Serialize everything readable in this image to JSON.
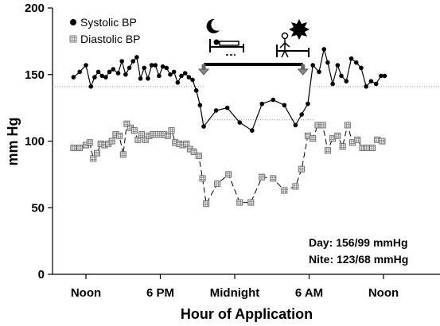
{
  "chart_data": {
    "type": "line",
    "title": "",
    "xlabel": "Hour of Application",
    "ylabel": "mm Hg",
    "ylim": [
      0,
      200
    ],
    "yticks": [
      0,
      50,
      100,
      150,
      200
    ],
    "xlim": [
      0,
      24
    ],
    "xticks": [
      {
        "x": 0,
        "label": "Noon"
      },
      {
        "x": 6,
        "label": "6 PM"
      },
      {
        "x": 12,
        "label": "Midnight"
      },
      {
        "x": 18,
        "label": "6 AM"
      },
      {
        "x": 24,
        "label": "Noon"
      }
    ],
    "grid": false,
    "legend_position": "top-left",
    "series": [
      {
        "name": "Systolic BP",
        "marker": "circle",
        "color": "#000000",
        "points": [
          [
            -1.0,
            148
          ],
          [
            -0.5,
            152
          ],
          [
            0.0,
            157
          ],
          [
            0.4,
            141
          ],
          [
            0.7,
            148
          ],
          [
            1.0,
            152
          ],
          [
            1.3,
            149
          ],
          [
            1.6,
            148
          ],
          [
            1.9,
            152
          ],
          [
            2.2,
            154
          ],
          [
            2.6,
            151
          ],
          [
            2.9,
            160
          ],
          [
            3.2,
            150
          ],
          [
            3.5,
            155
          ],
          [
            3.8,
            160
          ],
          [
            4.1,
            163
          ],
          [
            4.4,
            147
          ],
          [
            4.7,
            155
          ],
          [
            5.0,
            147
          ],
          [
            5.3,
            157
          ],
          [
            5.6,
            157
          ],
          [
            5.9,
            149
          ],
          [
            6.2,
            156
          ],
          [
            6.5,
            155
          ],
          [
            6.8,
            150
          ],
          [
            7.1,
            152
          ],
          [
            7.4,
            144
          ],
          [
            7.7,
            149
          ],
          [
            8.0,
            151
          ],
          [
            8.3,
            148
          ],
          [
            8.6,
            146
          ],
          [
            8.9,
            138
          ],
          [
            9.2,
            127
          ],
          [
            9.5,
            111
          ],
          [
            10.5,
            123
          ],
          [
            11.4,
            125
          ],
          [
            12.4,
            114
          ],
          [
            13.4,
            108
          ],
          [
            14.2,
            128
          ],
          [
            15.1,
            131
          ],
          [
            16.0,
            127
          ],
          [
            16.9,
            112
          ],
          [
            17.4,
            120
          ],
          [
            17.9,
            128
          ],
          [
            18.3,
            157
          ],
          [
            18.8,
            152
          ],
          [
            19.2,
            169
          ],
          [
            19.5,
            159
          ],
          [
            19.9,
            143
          ],
          [
            20.3,
            157
          ],
          [
            20.6,
            149
          ],
          [
            21.0,
            145
          ],
          [
            21.4,
            162
          ],
          [
            21.8,
            159
          ],
          [
            22.2,
            155
          ],
          [
            22.6,
            141
          ],
          [
            23.0,
            145
          ],
          [
            23.4,
            143
          ],
          [
            23.8,
            149
          ],
          [
            24.1,
            149
          ]
        ]
      },
      {
        "name": "Diastolic BP",
        "marker": "square-grid",
        "color": "#808080",
        "points": [
          [
            -1.0,
            95
          ],
          [
            -0.5,
            95
          ],
          [
            0.0,
            97
          ],
          [
            0.3,
            99
          ],
          [
            0.6,
            87
          ],
          [
            0.9,
            91
          ],
          [
            1.2,
            98
          ],
          [
            1.5,
            97
          ],
          [
            1.8,
            98
          ],
          [
            2.1,
            100
          ],
          [
            2.4,
            105
          ],
          [
            2.7,
            104
          ],
          [
            3.0,
            90
          ],
          [
            3.3,
            113
          ],
          [
            3.6,
            110
          ],
          [
            3.9,
            108
          ],
          [
            4.2,
            101
          ],
          [
            4.5,
            105
          ],
          [
            4.8,
            101
          ],
          [
            5.1,
            104
          ],
          [
            5.4,
            105
          ],
          [
            5.7,
            105
          ],
          [
            6.0,
            105
          ],
          [
            6.3,
            105
          ],
          [
            6.6,
            104
          ],
          [
            6.9,
            108
          ],
          [
            7.2,
            99
          ],
          [
            7.5,
            98
          ],
          [
            7.8,
            97
          ],
          [
            8.1,
            98
          ],
          [
            8.4,
            94
          ],
          [
            8.7,
            92
          ],
          [
            9.1,
            89
          ],
          [
            9.4,
            72
          ],
          [
            9.7,
            53
          ],
          [
            10.6,
            68
          ],
          [
            11.5,
            75
          ],
          [
            12.4,
            54
          ],
          [
            13.3,
            54
          ],
          [
            14.2,
            73
          ],
          [
            15.1,
            72
          ],
          [
            16.0,
            63
          ],
          [
            16.9,
            66
          ],
          [
            17.4,
            79
          ],
          [
            17.9,
            104
          ],
          [
            18.3,
            102
          ],
          [
            18.7,
            112
          ],
          [
            19.1,
            112
          ],
          [
            19.5,
            93
          ],
          [
            19.9,
            102
          ],
          [
            20.3,
            104
          ],
          [
            20.7,
            96
          ],
          [
            21.1,
            112
          ],
          [
            21.5,
            99
          ],
          [
            21.9,
            101
          ],
          [
            22.3,
            95
          ],
          [
            22.7,
            95
          ],
          [
            23.1,
            95
          ],
          [
            23.5,
            101
          ],
          [
            23.9,
            100
          ]
        ]
      }
    ],
    "annotations": [
      {
        "text": "Day: 156/99 mmHg"
      },
      {
        "text": "Nite: 123/68 mmHg"
      }
    ],
    "reference_lines": [
      {
        "series": "Systolic BP",
        "y": 141,
        "style": "dotted"
      },
      {
        "series": "Systolic BP",
        "y": 116,
        "style": "dotted"
      }
    ],
    "night_period_arrow": {
      "x_start": 9.5,
      "x_end": 17.5,
      "y": 150
    }
  }
}
